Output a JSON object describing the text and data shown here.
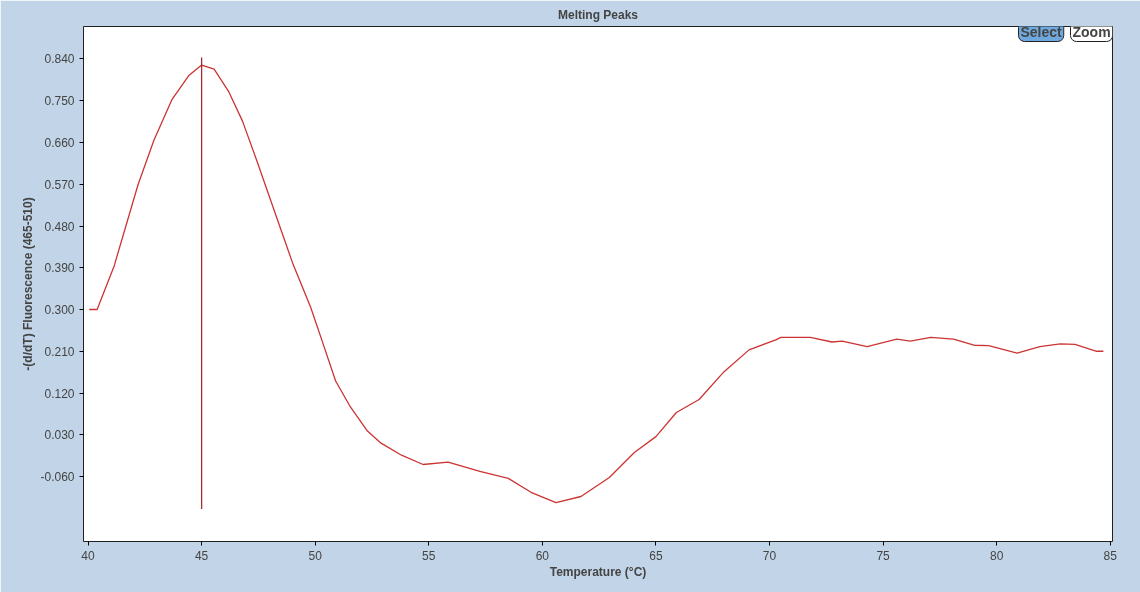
{
  "chart_data": {
    "type": "line",
    "title": "Melting Peaks",
    "xlabel": "Temperature (°C)",
    "ylabel": "-(d/dT) Fluorescence (465-510)",
    "annotations": [
      "Select",
      "Zoom"
    ],
    "xlim": [
      39.8,
      85.1
    ],
    "ylim": [
      -0.2,
      0.91
    ],
    "xticks": [
      40,
      45,
      50,
      55,
      60,
      65,
      70,
      75,
      80,
      85
    ],
    "yticks": [
      {
        "value": 0.84,
        "label": "0.840"
      },
      {
        "value": 0.75,
        "label": "0.750"
      },
      {
        "value": 0.66,
        "label": "0.660"
      },
      {
        "value": 0.57,
        "label": "0.570"
      },
      {
        "value": 0.48,
        "label": "0.480"
      },
      {
        "value": 0.39,
        "label": "0.390"
      },
      {
        "value": 0.3,
        "label": "0.300"
      },
      {
        "value": 0.21,
        "label": "0.210"
      },
      {
        "value": 0.12,
        "label": "0.120"
      },
      {
        "value": 0.03,
        "label": "0.030"
      },
      {
        "value": -0.06,
        "label": "-0.060"
      }
    ],
    "grid": false,
    "line_style": "solid",
    "series": [
      {
        "color": "#cc3333",
        "x": [
          40.05,
          40.4,
          41.15,
          42.2,
          42.9,
          43.7,
          44.45,
          45.0,
          45.55,
          46.2,
          46.8,
          47.45,
          48.2,
          49.0,
          49.8,
          50.3,
          50.9,
          51.55,
          52.3,
          52.9,
          53.8,
          54.75,
          55.85,
          57.25,
          58.5,
          59.5,
          60.6,
          61.7,
          62.95,
          64.05,
          65.0,
          65.9,
          66.9,
          68.0,
          69.1,
          70.3,
          70.5,
          71.8,
          72.75,
          73.2,
          74.3,
          75.6,
          76.2,
          77.1,
          78.1,
          79.0,
          79.65,
          80.9,
          81.9,
          82.8,
          83.45,
          84.4,
          84.7
        ],
        "values": [
          0.3,
          0.3,
          0.394,
          0.569,
          0.665,
          0.753,
          0.805,
          0.827,
          0.818,
          0.769,
          0.706,
          0.618,
          0.513,
          0.401,
          0.305,
          0.233,
          0.146,
          0.09,
          0.038,
          0.012,
          -0.014,
          -0.034,
          -0.029,
          -0.049,
          -0.064,
          -0.094,
          -0.116,
          -0.103,
          -0.062,
          -0.008,
          0.026,
          0.078,
          0.106,
          0.166,
          0.213,
          0.235,
          0.24,
          0.24,
          0.23,
          0.232,
          0.22,
          0.236,
          0.232,
          0.24,
          0.236,
          0.223,
          0.222,
          0.206,
          0.22,
          0.226,
          0.225,
          0.21,
          0.21
        ]
      },
      {
        "color": "#a03030",
        "x": [
          45,
          45
        ],
        "values": [
          -0.13,
          0.843
        ]
      }
    ]
  }
}
